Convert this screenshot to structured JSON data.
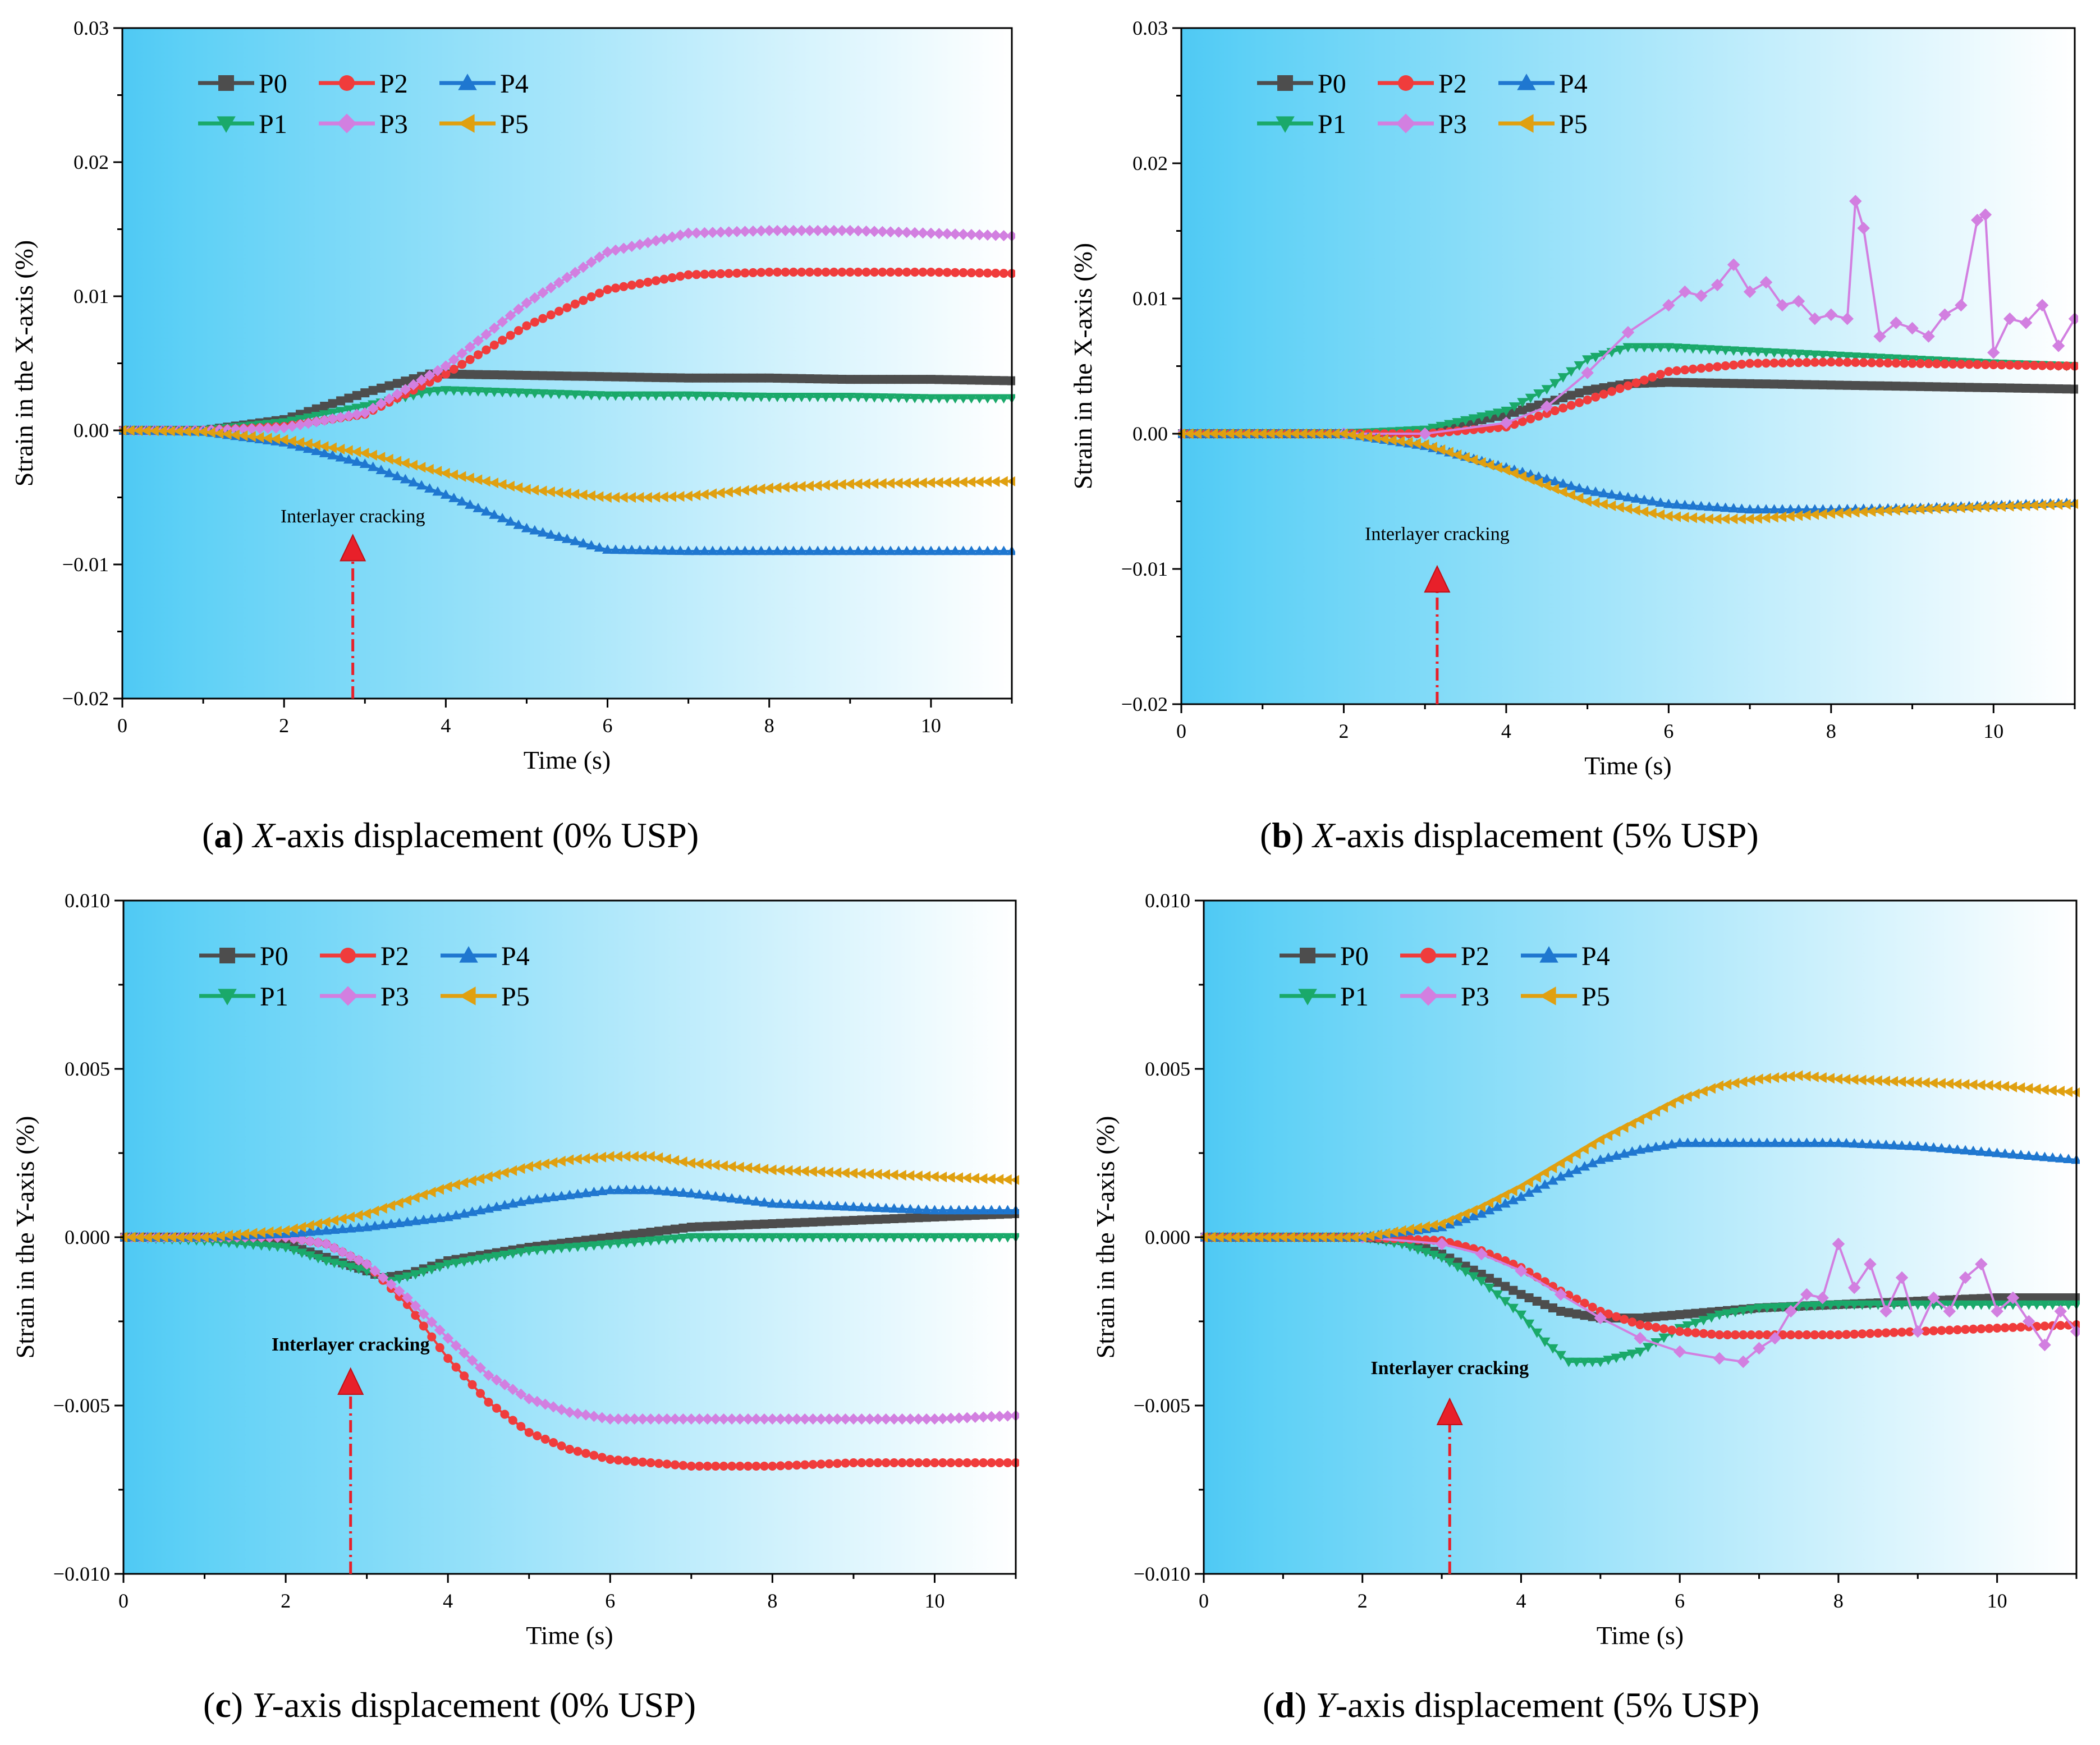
{
  "colors": {
    "P0": "#4d4d4d",
    "P1": "#1aa96a",
    "P2": "#f03c3c",
    "P3": "#d27fe0",
    "P4": "#1f77d0",
    "P5": "#e0a010",
    "bg_left": "#4fc9f4",
    "bg_right": "#ffffff",
    "arrow": "#e8202a"
  },
  "chart_data": [
    {
      "id": "a",
      "type": "line",
      "caption": {
        "letter": "a",
        "axis": "X",
        "text": "-axis displacement (0% USP)"
      },
      "xlabel": "Time (s)",
      "ylabel": "Strain in the X-axis (%)",
      "xlim": [
        0,
        11
      ],
      "ylim": [
        -0.02,
        0.03
      ],
      "xticks": [
        "0",
        "2",
        "4",
        "6",
        "8",
        "10"
      ],
      "yticks": [
        "−0.02",
        "−0.01",
        "0.00",
        "0.01",
        "0.02",
        "0.03"
      ],
      "ytick_values": [
        -0.02,
        -0.01,
        0.0,
        0.01,
        0.02,
        0.03
      ],
      "legend": [
        "P0",
        "P2",
        "P4",
        "P1",
        "P3",
        "P5"
      ],
      "annotation": {
        "text": "Interlayer cracking",
        "x": 2.85,
        "y_text": -0.0072,
        "y_arrow_top": -0.0078,
        "bold": false
      },
      "series": [
        {
          "name": "P0",
          "x": [
            0,
            1,
            2,
            3,
            3.8,
            4,
            5,
            6,
            7,
            8,
            9,
            10,
            11
          ],
          "y": [
            0,
            0,
            0.0008,
            0.0028,
            0.0042,
            0.0042,
            0.0041,
            0.004,
            0.0039,
            0.0039,
            0.0038,
            0.0038,
            0.0037
          ]
        },
        {
          "name": "P1",
          "x": [
            0,
            1,
            2,
            3,
            3.8,
            4,
            5,
            6,
            7,
            8,
            9,
            10,
            11
          ],
          "y": [
            0,
            0,
            0.0006,
            0.0018,
            0.0029,
            0.003,
            0.0028,
            0.0026,
            0.0026,
            0.0025,
            0.0025,
            0.0024,
            0.0024
          ]
        },
        {
          "name": "P2",
          "x": [
            0,
            1,
            2,
            3,
            4,
            5,
            6,
            7,
            8,
            9,
            10,
            11
          ],
          "y": [
            0,
            0,
            0.0003,
            0.0012,
            0.0042,
            0.0078,
            0.0105,
            0.0116,
            0.0118,
            0.0118,
            0.0118,
            0.0117
          ]
        },
        {
          "name": "P3",
          "x": [
            0,
            1,
            2,
            3,
            4,
            5,
            6,
            7,
            8,
            9,
            10,
            11
          ],
          "y": [
            0,
            0,
            0.0002,
            0.0013,
            0.0048,
            0.0095,
            0.0133,
            0.0147,
            0.0149,
            0.0149,
            0.0147,
            0.0145
          ]
        },
        {
          "name": "P4",
          "x": [
            0,
            1,
            2,
            3,
            4,
            5,
            6,
            7,
            8,
            9,
            10,
            11
          ],
          "y": [
            0,
            -0.0001,
            -0.0009,
            -0.0025,
            -0.0048,
            -0.0073,
            -0.0089,
            -0.009,
            -0.009,
            -0.009,
            -0.009,
            -0.009
          ]
        },
        {
          "name": "P5",
          "x": [
            0,
            1,
            2,
            3,
            4,
            5,
            6,
            6.5,
            7,
            8,
            9,
            10,
            11
          ],
          "y": [
            0,
            -0.0001,
            -0.0007,
            -0.0017,
            -0.0032,
            -0.0044,
            -0.005,
            -0.005,
            -0.0049,
            -0.0043,
            -0.004,
            -0.0039,
            -0.0038
          ]
        }
      ]
    },
    {
      "id": "b",
      "type": "line",
      "caption": {
        "letter": "b",
        "axis": "X",
        "text": "-axis displacement (5% USP)"
      },
      "xlabel": "Time (s)",
      "ylabel": "Strain in the X-axis (%)",
      "xlim": [
        0,
        11
      ],
      "ylim": [
        -0.02,
        0.03
      ],
      "xticks": [
        "0",
        "2",
        "4",
        "6",
        "8",
        "10"
      ],
      "yticks": [
        "−0.02",
        "−0.01",
        "0.00",
        "0.01",
        "0.02",
        "0.03"
      ],
      "ytick_values": [
        -0.02,
        -0.01,
        0.0,
        0.01,
        0.02,
        0.03
      ],
      "legend": [
        "P0",
        "P2",
        "P4",
        "P1",
        "P3",
        "P5"
      ],
      "annotation": {
        "text": "Interlayer cracking",
        "x": 3.15,
        "y_text": -0.0082,
        "y_arrow_top": -0.0098,
        "bold": false
      },
      "series": [
        {
          "name": "P0",
          "x": [
            0,
            2,
            3,
            4,
            5,
            5.5,
            6,
            7,
            8,
            9,
            10,
            11
          ],
          "y": [
            0,
            0,
            0.0002,
            0.0014,
            0.0032,
            0.0037,
            0.0038,
            0.0037,
            0.0036,
            0.0035,
            0.0034,
            0.0033
          ]
        },
        {
          "name": "P1",
          "x": [
            0,
            2,
            3,
            4,
            4.5,
            5,
            5.5,
            6,
            7,
            8,
            9,
            10,
            11
          ],
          "y": [
            0,
            0,
            0.0003,
            0.0017,
            0.0033,
            0.0055,
            0.0064,
            0.0064,
            0.0061,
            0.0058,
            0.0055,
            0.0052,
            0.005
          ]
        },
        {
          "name": "P2",
          "x": [
            0,
            2,
            3,
            4,
            5,
            6,
            7,
            8,
            9,
            10,
            11
          ],
          "y": [
            0,
            0,
            0,
            0.0005,
            0.0025,
            0.0046,
            0.0052,
            0.0053,
            0.0052,
            0.0051,
            0.005
          ]
        },
        {
          "name": "P3",
          "x": [
            0,
            2,
            3,
            4,
            4.5,
            5,
            5.5,
            6,
            6.2,
            6.4,
            6.6,
            6.8,
            7,
            7.2,
            7.4,
            7.6,
            7.8,
            8,
            8.2,
            8.3,
            8.4,
            8.6,
            8.8,
            9,
            9.2,
            9.4,
            9.6,
            9.8,
            9.9,
            10,
            10.2,
            10.4,
            10.6,
            10.8,
            11
          ],
          "y": [
            0,
            0,
            0,
            0.0008,
            0.002,
            0.0045,
            0.0075,
            0.0095,
            0.0105,
            0.0102,
            0.011,
            0.0125,
            0.0105,
            0.0112,
            0.0095,
            0.0098,
            0.0085,
            0.0088,
            0.0085,
            0.0172,
            0.0152,
            0.0072,
            0.0082,
            0.0078,
            0.0072,
            0.0088,
            0.0095,
            0.0158,
            0.0162,
            0.006,
            0.0085,
            0.0082,
            0.0095,
            0.0065,
            0.0085
          ]
        },
        {
          "name": "P4",
          "x": [
            0,
            2,
            3,
            4,
            5,
            6,
            7,
            8,
            9,
            10,
            11
          ],
          "y": [
            0,
            0,
            -0.0009,
            -0.0025,
            -0.0042,
            -0.0052,
            -0.0056,
            -0.0056,
            -0.0055,
            -0.0053,
            -0.0051
          ]
        },
        {
          "name": "P5",
          "x": [
            0,
            2,
            3,
            4,
            5,
            6,
            6.5,
            7,
            8,
            9,
            10,
            11
          ],
          "y": [
            0,
            0,
            -0.0008,
            -0.0027,
            -0.005,
            -0.0061,
            -0.0063,
            -0.0063,
            -0.0059,
            -0.0056,
            -0.0054,
            -0.0052
          ]
        }
      ]
    },
    {
      "id": "c",
      "type": "line",
      "caption": {
        "letter": "c",
        "axis": "Y",
        "text": "-axis displacement (0% USP)"
      },
      "xlabel": "Time (s)",
      "ylabel": "Strain in the Y-axis (%)",
      "xlim": [
        0,
        11
      ],
      "ylim": [
        -0.01,
        0.01
      ],
      "xticks": [
        "0",
        "2",
        "4",
        "6",
        "8",
        "10"
      ],
      "yticks": [
        "−0.010",
        "−0.005",
        "0.000",
        "0.005",
        "0.010"
      ],
      "ytick_values": [
        -0.01,
        -0.005,
        0.0,
        0.005,
        0.01
      ],
      "legend": [
        "P0",
        "P2",
        "P4",
        "P1",
        "P3",
        "P5"
      ],
      "annotation": {
        "text": "Interlayer cracking",
        "x": 2.8,
        "y_text": -0.0035,
        "y_arrow_top": -0.0039,
        "bold": true
      },
      "series": [
        {
          "name": "P0",
          "x": [
            0,
            1,
            2,
            2.5,
            3,
            3.2,
            3.5,
            4,
            5,
            6,
            7,
            8,
            9,
            10,
            11
          ],
          "y": [
            0,
            0,
            -0.0002,
            -0.0006,
            -0.001,
            -0.0012,
            -0.0011,
            -0.0007,
            -0.0003,
            0,
            0.0003,
            0.0004,
            0.0005,
            0.0006,
            0.0007
          ]
        },
        {
          "name": "P1",
          "x": [
            0,
            1,
            2,
            2.5,
            3,
            3.3,
            3.6,
            4,
            5,
            6,
            7,
            8,
            9,
            10,
            11
          ],
          "y": [
            0,
            -0.0001,
            -0.0003,
            -0.0007,
            -0.001,
            -0.0013,
            -0.0011,
            -0.0008,
            -0.0004,
            -0.0002,
            0,
            0,
            0,
            0,
            0
          ]
        },
        {
          "name": "P2",
          "x": [
            0,
            1,
            2,
            2.5,
            3,
            3.5,
            4,
            4.5,
            5,
            5.5,
            6,
            6.5,
            7,
            8,
            9,
            10,
            11
          ],
          "y": [
            0,
            0,
            0,
            -0.0002,
            -0.0008,
            -0.002,
            -0.0036,
            -0.0049,
            -0.0058,
            -0.0063,
            -0.0066,
            -0.0067,
            -0.0068,
            -0.0068,
            -0.0067,
            -0.0067,
            -0.0067
          ]
        },
        {
          "name": "P3",
          "x": [
            0,
            1,
            2,
            2.5,
            3,
            3.5,
            4,
            4.5,
            5,
            5.5,
            6,
            6.5,
            7,
            8,
            9,
            10,
            11
          ],
          "y": [
            0,
            0,
            0,
            -0.0002,
            -0.0008,
            -0.0018,
            -0.003,
            -0.0041,
            -0.0048,
            -0.0052,
            -0.0054,
            -0.0054,
            -0.0054,
            -0.0054,
            -0.0054,
            -0.0054,
            -0.0053
          ]
        },
        {
          "name": "P4",
          "x": [
            0,
            1,
            2,
            3,
            4,
            5,
            6,
            6.5,
            7,
            8,
            9,
            10,
            11
          ],
          "y": [
            0,
            0,
            0.0001,
            0.0003,
            0.0006,
            0.0011,
            0.0014,
            0.0014,
            0.0013,
            0.001,
            0.0009,
            0.0008,
            0.0008
          ]
        },
        {
          "name": "P5",
          "x": [
            0,
            1,
            2,
            3,
            4,
            5,
            5.5,
            6,
            6.5,
            7,
            8,
            9,
            10,
            11
          ],
          "y": [
            0,
            0,
            0.0002,
            0.0007,
            0.0015,
            0.0021,
            0.0023,
            0.0024,
            0.0024,
            0.0022,
            0.002,
            0.0019,
            0.0018,
            0.0017
          ]
        }
      ]
    },
    {
      "id": "d",
      "type": "line",
      "caption": {
        "letter": "d",
        "axis": "Y",
        "text": "-axis displacement (5% USP)"
      },
      "xlabel": "Time (s)",
      "ylabel": "Strain in the Y-axis (%)",
      "xlim": [
        0,
        11
      ],
      "ylim": [
        -0.01,
        0.01
      ],
      "xticks": [
        "0",
        "2",
        "4",
        "6",
        "8",
        "10"
      ],
      "yticks": [
        "−0.010",
        "−0.005",
        "0.000",
        "0.005",
        "0.010"
      ],
      "ytick_values": [
        -0.01,
        -0.005,
        0.0,
        0.005,
        0.01
      ],
      "legend": [
        "P0",
        "P2",
        "P4",
        "P1",
        "P3",
        "P5"
      ],
      "annotation": {
        "text": "Interlayer cracking",
        "x": 3.1,
        "y_text": -0.0042,
        "y_arrow_top": -0.0048,
        "bold": true
      },
      "series": [
        {
          "name": "P0",
          "x": [
            0,
            2,
            2.5,
            3,
            3.5,
            4,
            4.5,
            5,
            5.5,
            6,
            6.5,
            7,
            8,
            9,
            10,
            11
          ],
          "y": [
            0,
            0,
            -0.0001,
            -0.0005,
            -0.0011,
            -0.0017,
            -0.0022,
            -0.0024,
            -0.0024,
            -0.0023,
            -0.0022,
            -0.0021,
            -0.002,
            -0.0019,
            -0.0018,
            -0.0018
          ]
        },
        {
          "name": "P1",
          "x": [
            0,
            2,
            2.5,
            3,
            3.5,
            4,
            4.3,
            4.6,
            5,
            5.5,
            6,
            6.5,
            7,
            8,
            9,
            10,
            11
          ],
          "y": [
            0,
            0,
            -0.0002,
            -0.0006,
            -0.0013,
            -0.0023,
            -0.0031,
            -0.0037,
            -0.0037,
            -0.0034,
            -0.0027,
            -0.0023,
            -0.0021,
            -0.002,
            -0.002,
            -0.002,
            -0.002
          ]
        },
        {
          "name": "P2",
          "x": [
            0,
            2,
            3,
            3.5,
            4,
            4.5,
            5,
            5.5,
            6,
            6.5,
            7,
            8,
            9,
            10,
            11
          ],
          "y": [
            0,
            0,
            -0.0001,
            -0.0004,
            -0.0009,
            -0.0016,
            -0.0022,
            -0.0026,
            -0.0028,
            -0.0029,
            -0.0029,
            -0.0029,
            -0.0028,
            -0.0027,
            -0.0026
          ]
        },
        {
          "name": "P3",
          "x": [
            0,
            2,
            3,
            3.5,
            4,
            4.5,
            5,
            5.5,
            6,
            6.5,
            6.8,
            7,
            7.2,
            7.4,
            7.6,
            7.8,
            8,
            8.2,
            8.4,
            8.6,
            8.8,
            9,
            9.2,
            9.4,
            9.6,
            9.8,
            10,
            10.2,
            10.4,
            10.6,
            10.8,
            11
          ],
          "y": [
            0,
            0,
            -0.0002,
            -0.0005,
            -0.001,
            -0.0017,
            -0.0024,
            -0.003,
            -0.0034,
            -0.0036,
            -0.0037,
            -0.0033,
            -0.003,
            -0.0022,
            -0.0017,
            -0.0018,
            -0.0002,
            -0.0015,
            -0.0008,
            -0.0022,
            -0.0012,
            -0.0028,
            -0.0018,
            -0.0022,
            -0.0012,
            -0.0008,
            -0.0022,
            -0.0018,
            -0.0025,
            -0.0032,
            -0.0022,
            -0.0028
          ]
        },
        {
          "name": "P4",
          "x": [
            0,
            2,
            3,
            3.5,
            4,
            4.5,
            5,
            5.5,
            6,
            6.5,
            7,
            8,
            9,
            10,
            11
          ],
          "y": [
            0,
            0,
            0.0003,
            0.0007,
            0.0012,
            0.0018,
            0.0023,
            0.0026,
            0.0028,
            0.0028,
            0.0028,
            0.0028,
            0.0027,
            0.0025,
            0.0023
          ]
        },
        {
          "name": "P5",
          "x": [
            0,
            2,
            3,
            3.5,
            4,
            4.5,
            5,
            5.5,
            6,
            6.5,
            7,
            7.5,
            8,
            9,
            10,
            11
          ],
          "y": [
            0,
            0,
            0.0004,
            0.0009,
            0.0015,
            0.0022,
            0.0029,
            0.0035,
            0.0041,
            0.0045,
            0.0047,
            0.0048,
            0.0047,
            0.0046,
            0.0045,
            0.0043
          ]
        }
      ]
    }
  ]
}
